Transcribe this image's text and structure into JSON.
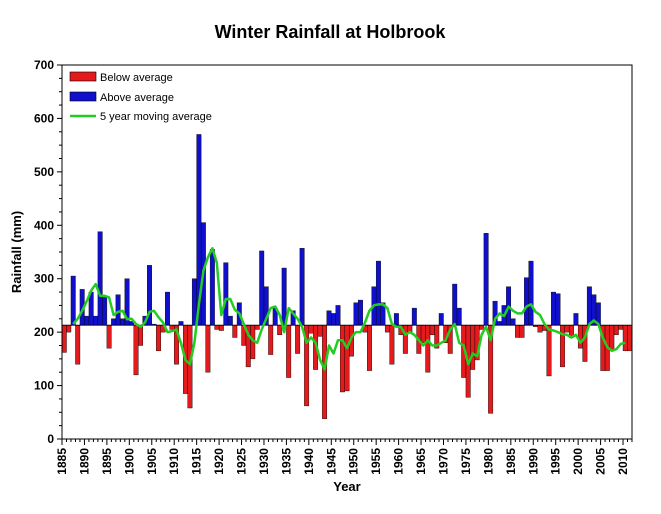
{
  "chart_data": {
    "type": "bar",
    "title": "Winter Rainfall at Holbrook",
    "xlabel": "Year",
    "ylabel": "Rainfall (mm)",
    "xlim": [
      1885,
      2012
    ],
    "ylim": [
      0,
      700
    ],
    "baseline": 213,
    "x_ticks": [
      "1885",
      "1890",
      "1895",
      "1900",
      "1905",
      "1910",
      "1915",
      "1920",
      "1925",
      "1930",
      "1935",
      "1940",
      "1945",
      "1950",
      "1955",
      "1960",
      "1965",
      "1970",
      "1975",
      "1980",
      "1985",
      "1990",
      "1995",
      "2000",
      "2005",
      "2010"
    ],
    "y_ticks": [
      "0",
      "100",
      "200",
      "300",
      "400",
      "500",
      "600",
      "700"
    ],
    "legend": {
      "placement": "top-left",
      "entries": [
        "Below average",
        "Above average",
        "5 year moving average"
      ]
    },
    "colors": {
      "below": "#e41a1c",
      "above": "#1010cc",
      "moving_average": "#22cc22"
    },
    "series": [
      {
        "name": "Winter rainfall",
        "x": [
          1885,
          1886,
          1887,
          1888,
          1889,
          1890,
          1891,
          1892,
          1893,
          1894,
          1895,
          1896,
          1897,
          1898,
          1899,
          1900,
          1901,
          1902,
          1903,
          1904,
          1905,
          1906,
          1907,
          1908,
          1909,
          1910,
          1911,
          1912,
          1913,
          1914,
          1915,
          1916,
          1917,
          1918,
          1919,
          1920,
          1921,
          1922,
          1923,
          1924,
          1925,
          1926,
          1927,
          1928,
          1929,
          1930,
          1931,
          1932,
          1933,
          1934,
          1935,
          1936,
          1937,
          1938,
          1939,
          1940,
          1941,
          1942,
          1943,
          1944,
          1945,
          1946,
          1947,
          1948,
          1949,
          1950,
          1951,
          1952,
          1953,
          1954,
          1955,
          1956,
          1957,
          1958,
          1959,
          1960,
          1961,
          1962,
          1963,
          1964,
          1965,
          1966,
          1967,
          1968,
          1969,
          1970,
          1971,
          1972,
          1973,
          1974,
          1975,
          1976,
          1977,
          1978,
          1979,
          1980,
          1981,
          1982,
          1983,
          1984,
          1985,
          1986,
          1987,
          1988,
          1989,
          1990,
          1991,
          1992,
          1993,
          1994,
          1995,
          1996,
          1997,
          1998,
          1999,
          2000,
          2001,
          2002,
          2003,
          2004,
          2005,
          2006,
          2007,
          2008,
          2009,
          2010,
          2011
        ],
        "values": [
          162,
          200,
          305,
          140,
          280,
          230,
          275,
          230,
          388,
          265,
          170,
          225,
          270,
          225,
          300,
          220,
          120,
          175,
          230,
          325,
          215,
          165,
          200,
          275,
          205,
          140,
          220,
          85,
          58,
          300,
          570,
          405,
          125,
          355,
          205,
          203,
          330,
          230,
          190,
          255,
          175,
          135,
          150,
          205,
          352,
          285,
          158,
          245,
          195,
          320,
          115,
          240,
          160,
          357,
          62,
          198,
          130,
          192,
          38,
          240,
          235,
          250,
          88,
          90,
          155,
          255,
          260,
          200,
          128,
          285,
          333,
          255,
          200,
          140,
          235,
          195,
          160,
          200,
          245,
          160,
          180,
          125,
          195,
          170,
          235,
          180,
          160,
          290,
          245,
          115,
          78,
          130,
          148,
          205,
          385,
          48,
          258,
          220,
          250,
          285,
          225,
          190,
          190,
          302,
          333,
          210,
          200,
          203,
          118,
          275,
          272,
          135,
          200,
          190,
          235,
          170,
          145,
          285,
          270,
          255,
          128,
          128,
          165,
          195,
          205,
          165,
          165
        ]
      },
      {
        "name": "5 year moving average",
        "x": [
          1887,
          1888,
          1889,
          1890,
          1891,
          1892,
          1893,
          1894,
          1895,
          1896,
          1897,
          1898,
          1899,
          1900,
          1901,
          1902,
          1903,
          1904,
          1905,
          1906,
          1907,
          1908,
          1909,
          1910,
          1911,
          1912,
          1913,
          1914,
          1915,
          1916,
          1917,
          1918,
          1919,
          1920,
          1921,
          1922,
          1923,
          1924,
          1925,
          1926,
          1927,
          1928,
          1929,
          1930,
          1931,
          1932,
          1933,
          1934,
          1935,
          1936,
          1937,
          1938,
          1939,
          1940,
          1941,
          1942,
          1943,
          1944,
          1945,
          1946,
          1947,
          1948,
          1949,
          1950,
          1951,
          1952,
          1953,
          1954,
          1955,
          1956,
          1957,
          1958,
          1959,
          1960,
          1961,
          1962,
          1963,
          1964,
          1965,
          1966,
          1967,
          1968,
          1969,
          1970,
          1971,
          1972,
          1973,
          1974,
          1975,
          1976,
          1977,
          1978,
          1979,
          1980,
          1981,
          1982,
          1983,
          1984,
          1985,
          1986,
          1987,
          1988,
          1989,
          1990,
          1991,
          1992,
          1993,
          1994,
          1995,
          1996,
          1997,
          1998,
          1999,
          2000,
          2001,
          2002,
          2003,
          2004,
          2005,
          2006,
          2007,
          2008,
          2009,
          2010
        ],
        "values": [
          215,
          225,
          240,
          258,
          278,
          290,
          268,
          268,
          265,
          232,
          238,
          240,
          224,
          225,
          215,
          210,
          218,
          238,
          240,
          228,
          218,
          200,
          202,
          205,
          180,
          148,
          140,
          180,
          252,
          315,
          340,
          357,
          330,
          232,
          262,
          262,
          242,
          235,
          215,
          195,
          185,
          180,
          205,
          225,
          245,
          248,
          232,
          200,
          245,
          235,
          225,
          210,
          180,
          190,
          180,
          148,
          130,
          175,
          160,
          185,
          185,
          170,
          190,
          200,
          200,
          218,
          240,
          250,
          252,
          252,
          245,
          215,
          210,
          210,
          195,
          200,
          195,
          185,
          175,
          185,
          175,
          175,
          180,
          185,
          205,
          215,
          180,
          175,
          140,
          160,
          155,
          195,
          210,
          185,
          225,
          235,
          230,
          248,
          240,
          235,
          235,
          248,
          252,
          238,
          232,
          215,
          205,
          203,
          200,
          196,
          195,
          190,
          195,
          180,
          190,
          215,
          222,
          215,
          190,
          172,
          165,
          168,
          178,
          180
        ]
      }
    ]
  }
}
